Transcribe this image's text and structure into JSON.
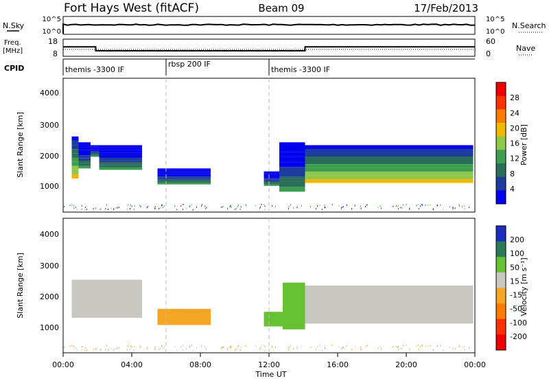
{
  "header": {
    "station": "Fort Hays West (fitACF)",
    "beam": "Beam 09",
    "date": "17/Feb/2013"
  },
  "top_panels": {
    "noise_left_label": "N.Sky",
    "noise_right_label": "N.Search",
    "noise_left_ticks": [
      "10^5",
      "10^0"
    ],
    "noise_right_ticks": [
      "10^5",
      "10^0"
    ],
    "freq_label_line1": "Freq.",
    "freq_label_line2": "[MHz]",
    "freq_ticks": [
      "18",
      "8"
    ],
    "nave_ticks": [
      "60",
      "0"
    ],
    "nave_label": "Nave",
    "cpid_label": "CPID",
    "cpid_segments": [
      {
        "label": "themis -3300 IF"
      },
      {
        "label": "rbsp 200 IF"
      },
      {
        "label": "themis -3300 IF"
      }
    ]
  },
  "x_axis": {
    "label": "Time UT",
    "ticks": [
      "00:00",
      "04:00",
      "08:00",
      "12:00",
      "16:00",
      "20:00",
      "00:00"
    ]
  },
  "power_panel": {
    "ylabel": "Slant Range [km]",
    "yticks": [
      "4000",
      "3000",
      "2000",
      "1000"
    ],
    "colorbar_label": "Power [dB]",
    "colorbar_ticks": [
      "28",
      "24",
      "20",
      "16",
      "12",
      "8",
      "4"
    ],
    "colors": [
      "#0000ee",
      "#1e3c9c",
      "#2a6e5a",
      "#3e9e50",
      "#8fc84a",
      "#f2b800",
      "#ff7a00",
      "#ff3000",
      "#ee0000"
    ]
  },
  "velocity_panel": {
    "ylabel": "Slant Range [km]",
    "yticks": [
      "4000",
      "3000",
      "2000",
      "1000"
    ],
    "colorbar_label": "Velocity [m s⁻¹]",
    "colorbar_ticks": [
      "200",
      "100",
      "50",
      "15",
      "-15",
      "-50",
      "-100",
      "-200"
    ],
    "colors": [
      "#1a2dbf",
      "#2b7a5a",
      "#66c233",
      "#c8c8c0",
      "#f5a623",
      "#ff7a00",
      "#ff3000",
      "#ee0000"
    ]
  },
  "chart_data": {
    "type": "heatmap",
    "x_unit": "hours UT",
    "xlim": [
      0,
      24
    ],
    "ylim_km": [
      0,
      4600
    ],
    "cpid_switch_hours": [
      6,
      12
    ],
    "frequency_mhz": [
      {
        "x_start": 0,
        "x_end": 1.9,
        "value": 13.5
      },
      {
        "x_start": 1.9,
        "x_end": 14.1,
        "value": 11.2
      },
      {
        "x_start": 14.1,
        "x_end": 24,
        "value": 13.5
      }
    ],
    "power_blobs": [
      {
        "x_start": 0.5,
        "x_end": 0.9,
        "range_km": [
          1150,
          2600
        ],
        "power_db": 20
      },
      {
        "x_start": 0.9,
        "x_end": 1.6,
        "range_km": [
          1500,
          2400
        ],
        "power_db": 10
      },
      {
        "x_start": 1.6,
        "x_end": 2.1,
        "range_km": [
          1900,
          2300
        ],
        "power_db": 12
      },
      {
        "x_start": 2.1,
        "x_end": 4.6,
        "range_km": [
          1450,
          2300
        ],
        "power_db": 12
      },
      {
        "x_start": 5.5,
        "x_end": 8.6,
        "range_km": [
          950,
          1500
        ],
        "power_db": 12
      },
      {
        "x_start": 11.7,
        "x_end": 12.6,
        "range_km": [
          900,
          1400
        ],
        "power_db": 12
      },
      {
        "x_start": 12.6,
        "x_end": 14.1,
        "range_km": [
          700,
          2400
        ],
        "power_db": 12
      },
      {
        "x_start": 14.1,
        "x_end": 23.9,
        "range_km": [
          1000,
          2300
        ],
        "power_db": 20
      }
    ],
    "velocity_blobs": [
      {
        "x_start": 0.5,
        "x_end": 4.6,
        "range_km": [
          1200,
          2500
        ],
        "velocity_ms": 0
      },
      {
        "x_start": 5.5,
        "x_end": 8.6,
        "range_km": [
          950,
          1500
        ],
        "velocity_ms": -40
      },
      {
        "x_start": 11.7,
        "x_end": 12.8,
        "range_km": [
          900,
          1400
        ],
        "velocity_ms": 40
      },
      {
        "x_start": 12.8,
        "x_end": 14.1,
        "range_km": [
          800,
          2400
        ],
        "velocity_ms": 60
      },
      {
        "x_start": 14.1,
        "x_end": 23.9,
        "range_km": [
          1000,
          2300
        ],
        "velocity_ms": 0
      }
    ]
  }
}
